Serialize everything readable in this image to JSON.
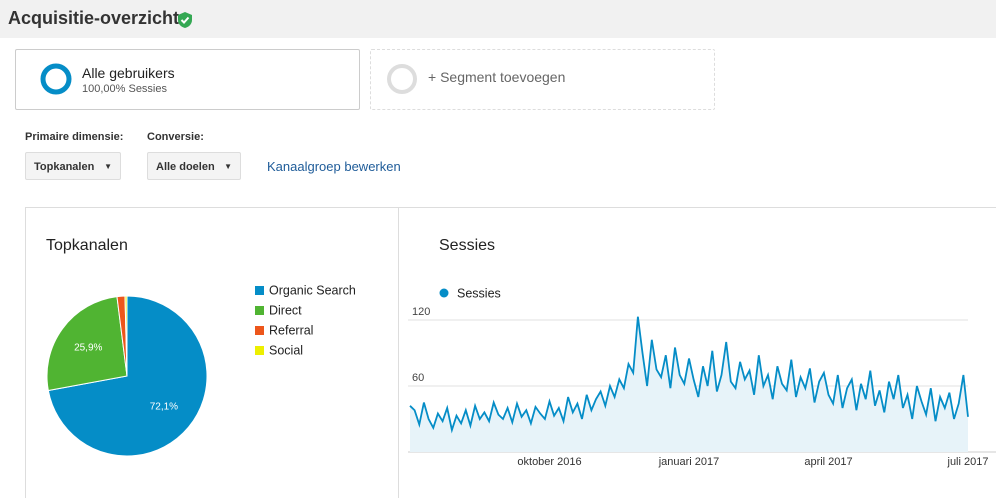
{
  "header": {
    "title": "Acquisitie-overzicht"
  },
  "segments": [
    {
      "name": "Alle gebruikers",
      "detail": "100,00% Sessies"
    },
    {
      "name": "+ Segment toevoegen"
    }
  ],
  "controls": {
    "primary_label": "Primaire dimensie:",
    "primary_value": "Topkanalen",
    "conversion_label": "Conversie:",
    "conversion_value": "Alle doelen",
    "edit_link": "Kanaalgroep bewerken"
  },
  "chart_data": [
    {
      "type": "pie",
      "title": "Topkanalen",
      "categories": [
        "Organic Search",
        "Direct",
        "Referral",
        "Social"
      ],
      "values": [
        72.1,
        25.9,
        1.6,
        0.4
      ],
      "value_labels": [
        "72,1%",
        "25,9%",
        null,
        null
      ],
      "colors": [
        "#058dc7",
        "#50b432",
        "#ed561b",
        "#edef00"
      ]
    },
    {
      "type": "line",
      "title": "Sessies",
      "categories": [
        null,
        null,
        null,
        null,
        null,
        null,
        null,
        null,
        null,
        null,
        null,
        null,
        null,
        null,
        null,
        null,
        null,
        null,
        null,
        null,
        null,
        null,
        null,
        null,
        null,
        null,
        null,
        null,
        null,
        null,
        "oktober 2016",
        null,
        null,
        null,
        null,
        null,
        null,
        null,
        null,
        null,
        null,
        null,
        null,
        null,
        null,
        null,
        null,
        null,
        null,
        null,
        null,
        null,
        null,
        null,
        null,
        null,
        null,
        null,
        null,
        null,
        "januari 2017",
        null,
        null,
        null,
        null,
        null,
        null,
        null,
        null,
        null,
        null,
        null,
        null,
        null,
        null,
        null,
        null,
        null,
        null,
        null,
        null,
        null,
        null,
        null,
        null,
        null,
        null,
        null,
        null,
        null,
        "april 2017",
        null,
        null,
        null,
        null,
        null,
        null,
        null,
        null,
        null,
        null,
        null,
        null,
        null,
        null,
        null,
        null,
        null,
        null,
        null,
        null,
        null,
        null,
        null,
        null,
        null,
        null,
        null,
        null,
        null,
        "juli 2017"
      ],
      "series": [
        {
          "name": "Sessies",
          "color": "#058dc7",
          "values": [
            42,
            38,
            25,
            45,
            30,
            22,
            35,
            28,
            40,
            20,
            33,
            26,
            38,
            24,
            42,
            30,
            36,
            28,
            45,
            34,
            30,
            40,
            27,
            44,
            32,
            38,
            26,
            41,
            35,
            30,
            46,
            33,
            40,
            28,
            50,
            36,
            44,
            30,
            52,
            38,
            48,
            55,
            42,
            60,
            50,
            66,
            58,
            80,
            72,
            123,
            90,
            60,
            102,
            75,
            68,
            88,
            58,
            95,
            70,
            62,
            85,
            66,
            50,
            78,
            60,
            92,
            55,
            70,
            100,
            64,
            58,
            82,
            66,
            74,
            52,
            88,
            60,
            70,
            48,
            78,
            62,
            56,
            84,
            50,
            68,
            58,
            76,
            45,
            64,
            72,
            52,
            44,
            70,
            40,
            58,
            66,
            38,
            62,
            48,
            74,
            42,
            56,
            36,
            64,
            48,
            70,
            40,
            52,
            30,
            60,
            46,
            34,
            58,
            28,
            50,
            40,
            54,
            30,
            44,
            70,
            32
          ]
        }
      ],
      "ylim": [
        0,
        130
      ],
      "yticks": [
        60,
        120
      ],
      "grid": true,
      "area": true
    }
  ]
}
